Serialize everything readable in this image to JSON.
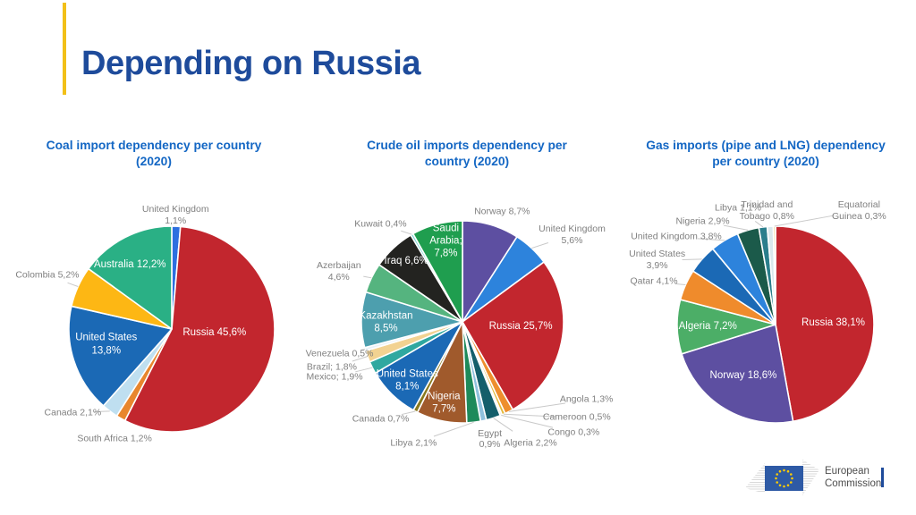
{
  "page": {
    "title": "Depending on Russia"
  },
  "accent_colors": {
    "title_blue": "#1E4B9B",
    "chart_title_blue": "#1467C4",
    "accent_yellow": "#F2C018",
    "outside_label_gray": "#808080"
  },
  "footer": {
    "logo_line1": "European",
    "logo_line2": "Commission"
  },
  "chart_data": [
    {
      "id": "coal",
      "type": "pie",
      "title": "Coal import dependency per country\n(2020)",
      "unit": "%",
      "categories": [
        "United Kingdom",
        "Russia",
        "South Africa",
        "Canada",
        "United States",
        "Colombia",
        "Australia"
      ],
      "values": [
        1.1,
        45.6,
        1.2,
        2.1,
        13.8,
        5.2,
        12.2
      ],
      "labels": [
        "United Kingdom\n1,1%",
        "Russia 45,6%",
        "South Africa 1,2%",
        "Canada 2,1%",
        "United States\n13,8%",
        "Colombia 5,2%",
        "Australia 12,2%"
      ],
      "colors": [
        "#2D6FE0",
        "#C2262E",
        "#E8862D",
        "#BFDFF0",
        "#1B69B5",
        "#FDB714",
        "#2AB085"
      ],
      "label_placement": [
        "outside",
        "inside",
        "outside",
        "outside",
        "inside",
        "outside",
        "inside"
      ]
    },
    {
      "id": "crude-oil",
      "type": "pie",
      "title": "Crude oil imports dependency per\ncountry (2020)",
      "unit": "%",
      "categories": [
        "Norway",
        "United Kingdom",
        "Russia",
        "Angola",
        "Cameroon",
        "Congo",
        "Algeria",
        "Egypt",
        "Libya",
        "Nigeria",
        "Canada",
        "United States",
        "Mexico",
        "Brazil",
        "Venezuela",
        "Kazakhstan",
        "Azerbaijan",
        "Iraq",
        "Kuwait",
        "Saudi Arabia"
      ],
      "values": [
        8.7,
        5.6,
        25.7,
        1.3,
        0.5,
        0.3,
        2.2,
        0.9,
        2.1,
        7.7,
        0.7,
        8.1,
        1.9,
        1.8,
        0.5,
        8.5,
        4.6,
        6.6,
        0.4,
        7.8
      ],
      "labels": [
        "Norway 8,7%",
        "United Kingdom\n5,6%",
        "Russia 25,7%",
        "Angola 1,3%",
        "Cameroon 0,5%",
        "Congo 0,3%",
        "Algeria 2,2%",
        "Egypt\n0,9%",
        "Libya 2,1%",
        "Nigeria\n7,7%",
        "Canada 0,7%",
        "United States\n8,1%",
        "Mexico; 1,9%",
        "Brazil; 1,8%",
        "Venezuela 0,5%",
        "Kazakhstan\n8,5%",
        "Azerbaijan\n4,6%",
        "Iraq 6,6%",
        "Kuwait 0,4%",
        "Saudi\nArabia;\n7,8%"
      ],
      "colors": [
        "#5D4FA1",
        "#2D83DC",
        "#C2262E",
        "#EE8F2E",
        "#E3B838",
        "#F2EBD8",
        "#145F6B",
        "#8FC1DD",
        "#1E8A5A",
        "#A05A2C",
        "#8A7A1E",
        "#1B69B5",
        "#2FA8A0",
        "#F2D291",
        "#EAF2F8",
        "#4D9FAE",
        "#55B47F",
        "#232320",
        "#7FD6D6",
        "#1F9E4F"
      ],
      "label_placement": [
        "outside",
        "outside",
        "inside",
        "outside",
        "outside",
        "outside",
        "outside",
        "outside",
        "outside",
        "inside",
        "outside",
        "inside",
        "outside",
        "outside",
        "outside",
        "inside",
        "outside",
        "inside",
        "outside",
        "inside"
      ]
    },
    {
      "id": "gas",
      "type": "pie",
      "title": "Gas imports (pipe and LNG) dependency\nper country (2020)",
      "unit": "%",
      "categories": [
        "Russia",
        "Norway",
        "Algeria",
        "Qatar",
        "United States",
        "United Kingdom",
        "Nigeria",
        "Libya",
        "Trinidad and Tobago",
        "Equatorial Guinea"
      ],
      "values": [
        38.1,
        18.6,
        7.2,
        4.1,
        3.9,
        3.8,
        2.9,
        1.1,
        0.8,
        0.3
      ],
      "labels": [
        "Russia 38,1%",
        "Norway 18,6%",
        "Algeria 7,2%",
        "Qatar 4,1%",
        "United States\n3,9%",
        "United Kingdom 3,8%",
        "Nigeria 2,9%",
        "Libya 1,1%",
        "Trinidad and\nTobago 0,8%",
        "Equatorial\nGuinea 0,3%"
      ],
      "colors": [
        "#C2262E",
        "#5D4FA1",
        "#4CAE67",
        "#EF8B2C",
        "#1B69B5",
        "#2D83DC",
        "#1B5A4A",
        "#2A7E8C",
        "#D9E8EC",
        "#F0DC9F"
      ],
      "label_placement": [
        "inside",
        "inside",
        "inside",
        "outside",
        "outside",
        "outside",
        "outside",
        "outside",
        "outside",
        "outside"
      ]
    }
  ]
}
